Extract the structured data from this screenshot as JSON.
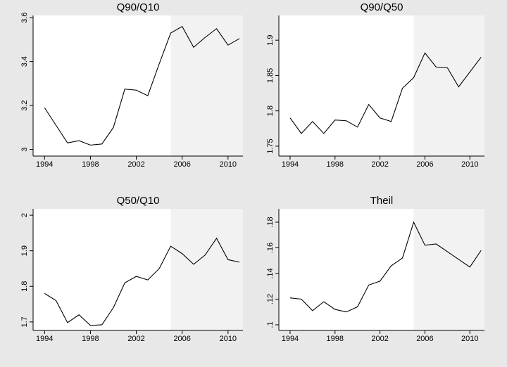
{
  "chart_data": [
    {
      "type": "line",
      "title": "Q90/Q10",
      "x": [
        1994,
        1995,
        1996,
        1997,
        1998,
        1999,
        2000,
        2001,
        2002,
        2003,
        2004,
        2005,
        2006,
        2007,
        2008,
        2009,
        2010,
        2011
      ],
      "values": [
        3.19,
        3.11,
        3.03,
        3.04,
        3.02,
        3.025,
        3.1,
        3.275,
        3.27,
        3.245,
        3.39,
        3.53,
        3.56,
        3.465,
        3.51,
        3.55,
        3.475,
        3.505
      ],
      "color": "#000000",
      "shade_start": 2005,
      "xlim": [
        1993,
        2011.3
      ],
      "xticks": [
        1994,
        1998,
        2002,
        2006,
        2010
      ],
      "ylim": [
        2.97,
        3.61
      ],
      "yticks": [
        3,
        3.2,
        3.4,
        3.6
      ]
    },
    {
      "type": "line",
      "title": "Q90/Q50",
      "x": [
        1994,
        1995,
        1996,
        1997,
        1998,
        1999,
        2000,
        2001,
        2002,
        2003,
        2004,
        2005,
        2006,
        2007,
        2008,
        2009,
        2010,
        2011
      ],
      "values": [
        1.79,
        1.768,
        1.785,
        1.768,
        1.787,
        1.786,
        1.777,
        1.809,
        1.79,
        1.785,
        1.832,
        1.847,
        1.882,
        1.862,
        1.861,
        1.834,
        1.855,
        1.876
      ],
      "color": "#000000",
      "shade_start": 2005,
      "xlim": [
        1993,
        2011.3
      ],
      "xticks": [
        1994,
        1998,
        2002,
        2006,
        2010
      ],
      "ylim": [
        1.736,
        1.935
      ],
      "yticks": [
        1.75,
        1.8,
        1.85,
        1.9
      ]
    },
    {
      "type": "line",
      "title": "Q50/Q10",
      "x": [
        1994,
        1995,
        1996,
        1997,
        1998,
        1999,
        2000,
        2001,
        2002,
        2003,
        2004,
        2005,
        2006,
        2007,
        2008,
        2009,
        2010,
        2011
      ],
      "values": [
        1.78,
        1.76,
        1.698,
        1.72,
        1.69,
        1.692,
        1.74,
        1.81,
        1.828,
        1.818,
        1.85,
        1.913,
        1.892,
        1.862,
        1.888,
        1.935,
        1.875,
        1.868
      ],
      "color": "#000000",
      "shade_start": 2005,
      "xlim": [
        1993,
        2011.3
      ],
      "xticks": [
        1994,
        1998,
        2002,
        2006,
        2010
      ],
      "ylim": [
        1.676,
        2.018
      ],
      "yticks": [
        1.7,
        1.8,
        1.9,
        2
      ]
    },
    {
      "type": "line",
      "title": "Theil",
      "x": [
        1994,
        1995,
        1996,
        1997,
        1998,
        1999,
        2000,
        2001,
        2002,
        2003,
        2004,
        2005,
        2006,
        2007,
        2008,
        2009,
        2010,
        2011
      ],
      "values": [
        0.121,
        0.12,
        0.111,
        0.118,
        0.112,
        0.11,
        0.114,
        0.131,
        0.134,
        0.146,
        0.152,
        0.18,
        0.162,
        0.163,
        0.157,
        0.151,
        0.145,
        0.158
      ],
      "color": "#000000",
      "shade_start": 2005,
      "xlim": [
        1993,
        2011.3
      ],
      "xticks": [
        1994,
        1998,
        2002,
        2006,
        2010
      ],
      "ylim": [
        0.0956,
        0.1904
      ],
      "yticks": [
        {
          "value": 0.1,
          "label": ".1"
        },
        {
          "value": 0.12,
          "label": ".12"
        },
        {
          "value": 0.14,
          "label": ".14"
        },
        {
          "value": 0.16,
          "label": ".16"
        },
        {
          "value": 0.18,
          "label": ".18"
        }
      ]
    }
  ]
}
